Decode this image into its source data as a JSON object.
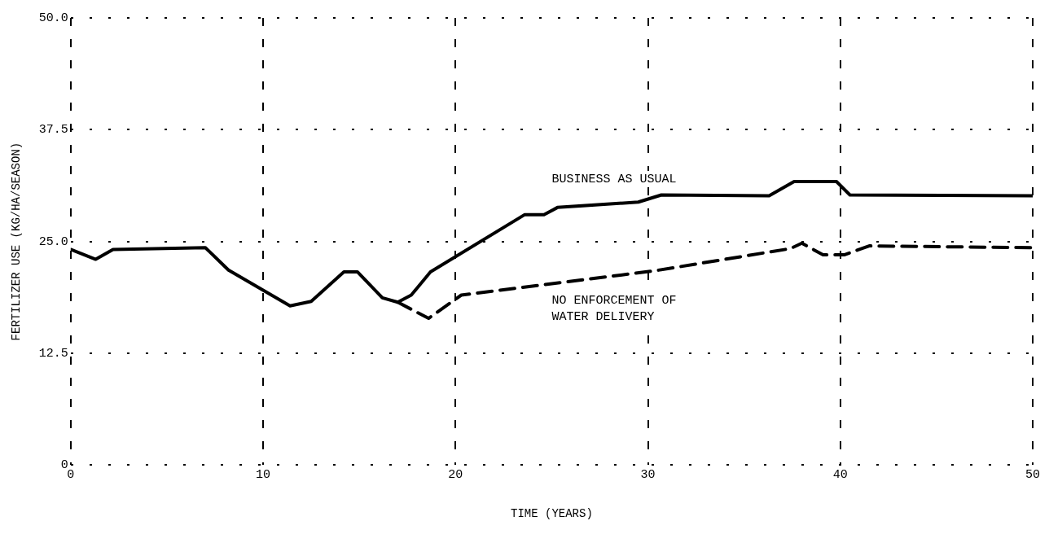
{
  "chart_data": {
    "type": "line",
    "xlabel": "TIME (YEARS)",
    "ylabel": "FERTILIZER USE (KG/HA/SEASON)",
    "xlim": [
      0,
      50
    ],
    "xticks": [
      0,
      10,
      20,
      30,
      40,
      50
    ],
    "ylim": [
      0,
      50
    ],
    "yticks": [
      0,
      {
        "value": 12.5,
        "label": "12.5"
      },
      {
        "value": 25,
        "label": "25.0"
      },
      {
        "value": 37.5,
        "label": "37.5"
      },
      {
        "value": 50,
        "label": "50.0"
      }
    ],
    "grid": true,
    "legend": false,
    "marker": "none",
    "series": [
      {
        "color": "#000000",
        "line_style": "solid",
        "x": [
          0,
          1.3,
          2.2,
          7.0,
          8.2,
          11.4,
          12.5,
          14.2,
          14.9,
          16.2,
          17.0,
          17.7,
          18.7,
          23.6,
          24.6,
          25.3,
          29.5,
          30.7,
          36.3,
          37.6,
          39.8,
          40.5,
          50
        ],
        "values": [
          24.1,
          23.0,
          24.1,
          24.3,
          21.8,
          17.8,
          18.3,
          21.6,
          21.6,
          18.7,
          18.2,
          19.0,
          21.6,
          28.0,
          28.0,
          28.8,
          29.4,
          30.2,
          30.1,
          31.7,
          31.7,
          30.2,
          30.1
        ]
      },
      {
        "color": "#000000",
        "line_style": "dashed",
        "x": [
          17.0,
          18.6,
          20.3,
          30.3,
          37.4,
          38.0,
          39.1,
          40.2,
          41.5,
          50
        ],
        "values": [
          18.2,
          16.4,
          19.0,
          21.7,
          24.2,
          24.8,
          23.5,
          23.5,
          24.5,
          24.3
        ]
      }
    ],
    "annotations": [
      "BUSINESS AS USUAL",
      "NO ENFORCEMENT OF\nWATER DELIVERY"
    ]
  }
}
